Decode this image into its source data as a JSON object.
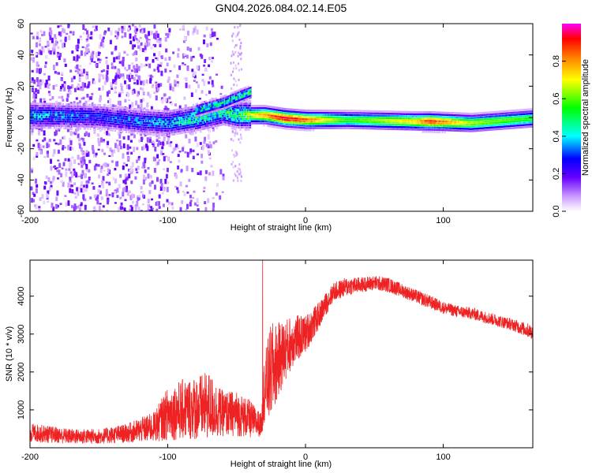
{
  "figure_title": "GN04.2026.084.02.14.E05",
  "colors": {
    "snr_line": "#ee2222",
    "axis": "#000000"
  },
  "chart_data": [
    {
      "type": "heatmap",
      "title": "GN04.2026.084.02.14.E05",
      "xlabel": "Height of straight line (km)",
      "ylabel": "Frequency (Hz)",
      "xlim": [
        -200,
        165
      ],
      "ylim": [
        -60,
        60
      ],
      "xticks": [
        -200,
        -100,
        0,
        100
      ],
      "yticks": [
        -60,
        -40,
        -20,
        0,
        20,
        40,
        60
      ],
      "xtick_labels": [
        "-200",
        "-100",
        "0",
        "100"
      ],
      "ytick_labels": [
        "-60",
        "-40",
        "-20",
        "0",
        "20",
        "40",
        "60"
      ],
      "colorbar": {
        "label": "Normalized spectral amplitude",
        "range": [
          0,
          1
        ],
        "ticks": [
          0,
          0.2,
          0.4,
          0.6,
          0.8
        ],
        "tick_labels": [
          "0.0",
          "0.2",
          "0.4",
          "0.6",
          "0.8"
        ]
      },
      "ridge": [
        {
          "x": -200,
          "f": 2,
          "amp": 0.4
        },
        {
          "x": -150,
          "f": 1,
          "amp": 0.3
        },
        {
          "x": -120,
          "f": -2,
          "amp": 0.35
        },
        {
          "x": -100,
          "f": -3,
          "amp": 0.4
        },
        {
          "x": -80,
          "f": 0,
          "amp": 0.5
        },
        {
          "x": -60,
          "f": 4,
          "amp": 0.5
        },
        {
          "x": -50,
          "f": 2,
          "amp": 0.55
        },
        {
          "x": -30,
          "f": 2,
          "amp": 0.8
        },
        {
          "x": -15,
          "f": 0,
          "amp": 0.95
        },
        {
          "x": 0,
          "f": -1,
          "amp": 0.85
        },
        {
          "x": 30,
          "f": -1,
          "amp": 0.55
        },
        {
          "x": 80,
          "f": -2,
          "amp": 0.75
        },
        {
          "x": 90,
          "f": -2,
          "amp": 0.9
        },
        {
          "x": 120,
          "f": -3,
          "amp": 0.65
        },
        {
          "x": 165,
          "f": 0,
          "amp": 0.55
        }
      ],
      "upper_branch": [
        {
          "x": -80,
          "f": 5,
          "amp": 0.45
        },
        {
          "x": -60,
          "f": 10,
          "amp": 0.5
        },
        {
          "x": -40,
          "f": 17,
          "amp": 0.55
        }
      ]
    },
    {
      "type": "line",
      "xlabel": "Height of straight line (km)",
      "ylabel": "SNR (10 * v/v)",
      "xlim": [
        -200,
        165
      ],
      "ylim": [
        0,
        4950
      ],
      "xticks": [
        -200,
        -100,
        0,
        100
      ],
      "yticks": [
        1000,
        2000,
        3000,
        4000
      ],
      "xtick_labels": [
        "-200",
        "-100",
        "0",
        "100"
      ],
      "ytick_labels": [
        "1000",
        "2000",
        "3000",
        "4000"
      ],
      "series": [
        {
          "name": "SNR",
          "envelope": {
            "x": [
              -200,
              -170,
              -150,
              -130,
              -110,
              -100,
              -90,
              -80,
              -70,
              -60,
              -50,
              -40,
              -32,
              -30,
              -25,
              -20,
              -10,
              0,
              10,
              20,
              30,
              40,
              50,
              60,
              70,
              80,
              90,
              100,
              110,
              120,
              130,
              140,
              150,
              165
            ],
            "center": [
              400,
              300,
              300,
              380,
              550,
              900,
              1000,
              1050,
              1100,
              900,
              900,
              750,
              600,
              1500,
              2000,
              2300,
              2800,
              3000,
              3500,
              4100,
              4250,
              4300,
              4350,
              4300,
              4150,
              4000,
              3850,
              3700,
              3600,
              3550,
              3450,
              3350,
              3250,
              3050
            ],
            "spread": [
              250,
              200,
              200,
              250,
              400,
              700,
              800,
              850,
              900,
              600,
              600,
              500,
              300,
              900,
              1300,
              1000,
              700,
              500,
              350,
              250,
              250,
              200,
              200,
              200,
              180,
              180,
              180,
              160,
              160,
              160,
              160,
              160,
              160,
              200
            ]
          }
        }
      ]
    }
  ]
}
